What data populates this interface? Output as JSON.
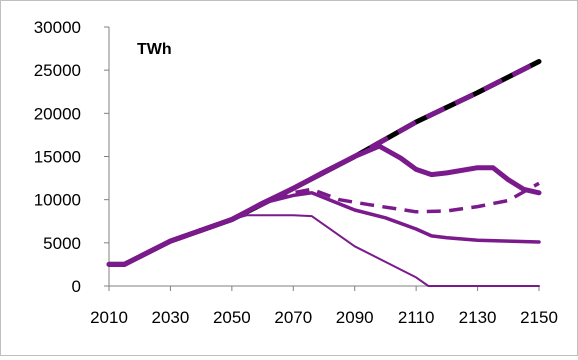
{
  "chart_data": {
    "type": "line",
    "title": "",
    "unit_label": "TWh",
    "xlabel": "",
    "ylabel": "",
    "xlim": [
      2010,
      2150
    ],
    "ylim": [
      0,
      30000
    ],
    "x_ticks": [
      2010,
      2030,
      2050,
      2070,
      2090,
      2110,
      2130,
      2150
    ],
    "y_ticks": [
      0,
      5000,
      10000,
      15000,
      20000,
      25000,
      30000
    ],
    "grid": false,
    "legend": "none",
    "colors": {
      "purple": "#7b1a8c",
      "black": "#000000"
    },
    "series": [
      {
        "color": "#000000",
        "style": "solid",
        "width": "thick",
        "x": [
          2010,
          2015,
          2030,
          2050,
          2070,
          2090,
          2110,
          2130,
          2150
        ],
        "y": [
          2500,
          2500,
          5200,
          7700,
          11300,
          15000,
          19000,
          22400,
          26000
        ]
      },
      {
        "color": "#7b1a8c",
        "style": "dashed",
        "width": "thick",
        "x": [
          2010,
          2015,
          2030,
          2050,
          2070,
          2090,
          2110,
          2130,
          2150
        ],
        "y": [
          2500,
          2500,
          5200,
          7700,
          11300,
          15000,
          19000,
          22400,
          26000
        ]
      },
      {
        "color": "#7b1a8c",
        "style": "solid",
        "width": "thick",
        "x": [
          2010,
          2015,
          2030,
          2050,
          2060,
          2070,
          2080,
          2090,
          2098,
          2105,
          2110,
          2115,
          2120,
          2130,
          2135,
          2140,
          2145,
          2150
        ],
        "y": [
          2500,
          2500,
          5200,
          7700,
          9600,
          11300,
          13200,
          15000,
          16200,
          14800,
          13500,
          12900,
          13100,
          13700,
          13700,
          12300,
          11200,
          10800
        ]
      },
      {
        "color": "#7b1a8c",
        "style": "dashed",
        "width": "medium",
        "x": [
          2010,
          2015,
          2030,
          2050,
          2060,
          2070,
          2076,
          2085,
          2095,
          2110,
          2120,
          2130,
          2140,
          2150
        ],
        "y": [
          2500,
          2500,
          5200,
          7700,
          9600,
          10800,
          11200,
          10000,
          9400,
          8600,
          8700,
          9200,
          9900,
          11900
        ]
      },
      {
        "color": "#7b1a8c",
        "style": "solid",
        "width": "medium",
        "x": [
          2010,
          2015,
          2030,
          2050,
          2060,
          2070,
          2076,
          2090,
          2100,
          2110,
          2115,
          2120,
          2130,
          2140,
          2150
        ],
        "y": [
          2500,
          2500,
          5200,
          7700,
          9600,
          10500,
          10800,
          8800,
          7900,
          6600,
          5800,
          5600,
          5300,
          5200,
          5100
        ]
      },
      {
        "color": "#7b1a8c",
        "style": "solid",
        "width": "thin",
        "x": [
          2010,
          2015,
          2030,
          2050,
          2055,
          2070,
          2076,
          2090,
          2110,
          2114,
          2150
        ],
        "y": [
          2500,
          2500,
          5200,
          7700,
          8200,
          8200,
          8100,
          4600,
          1000,
          0,
          0
        ]
      }
    ]
  }
}
